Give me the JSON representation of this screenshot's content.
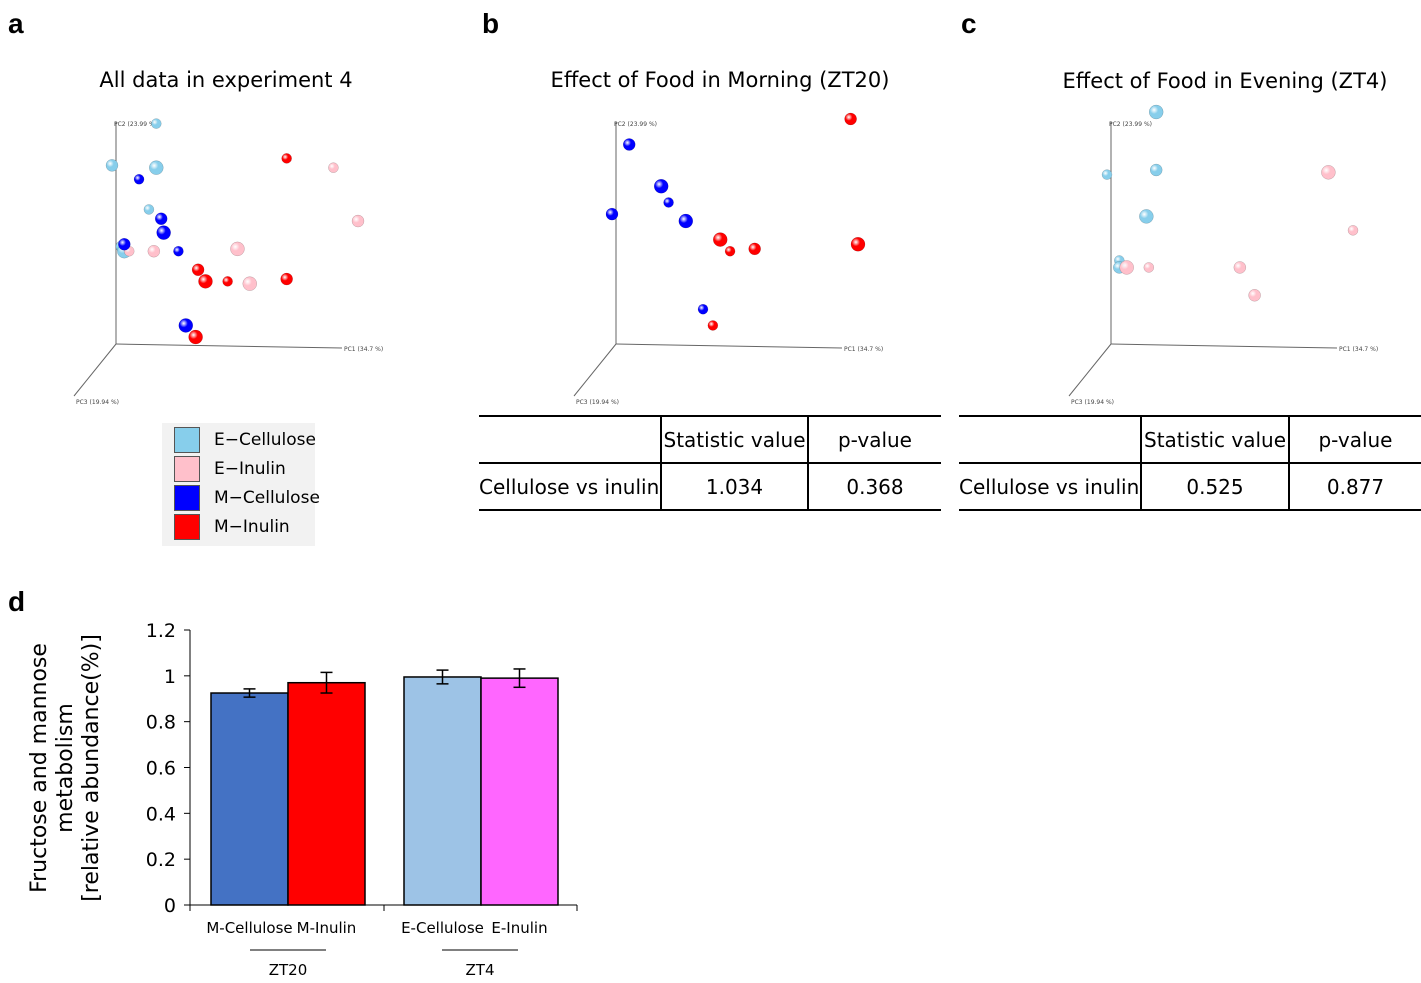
{
  "panels": {
    "a": {
      "letter": "a",
      "title": "All data in experiment 4"
    },
    "b": {
      "letter": "b",
      "title": "Effect of Food in Morning (ZT20)"
    },
    "c": {
      "letter": "c",
      "title": "Effect of Food in Evening (ZT4)"
    },
    "d": {
      "letter": "d"
    }
  },
  "pca_axes": {
    "pc1": "PC1 (34.7 %)",
    "pc2": "PC2 (23.99 %)",
    "pc3": "PC3 (19.94 %)"
  },
  "legend": [
    {
      "label": "E−Cellulose",
      "color": "#87ceeb"
    },
    {
      "label": "E−Inulin",
      "color": "#ffc0cb"
    },
    {
      "label": "M−Cellulose",
      "color": "#0000ff"
    },
    {
      "label": "M−Inulin",
      "color": "#ff0000"
    }
  ],
  "tables": {
    "b": {
      "headers": [
        "",
        "Statistic value",
        "p-value"
      ],
      "row": [
        "Cellulose vs inulin",
        "1.034",
        "0.368"
      ]
    },
    "c": {
      "headers": [
        "",
        "Statistic value",
        "p-value"
      ],
      "row": [
        "Cellulose vs inulin",
        "0.525",
        "0.877"
      ]
    }
  },
  "chart_data": [
    {
      "panel": "a",
      "type": "scatter",
      "title": "All data in experiment 4",
      "projection": "3d-pca",
      "axes": [
        "PC1 (34.7 %)",
        "PC2 (23.99 %)",
        "PC3 (19.94 %)"
      ],
      "series": [
        {
          "name": "E−Cellulose",
          "color": "#87ceeb",
          "points": [
            [
              0.18,
              0.95
            ],
            [
              0.0,
              0.77
            ],
            [
              0.18,
              0.76
            ],
            [
              0.15,
              0.58
            ],
            [
              0.04,
              0.42
            ],
            [
              0.05,
              0.4
            ]
          ]
        },
        {
          "name": "E−Inulin",
          "color": "#ffc0cb",
          "points": [
            [
              0.9,
              0.76
            ],
            [
              1.0,
              0.53
            ],
            [
              0.51,
              0.41
            ],
            [
              0.07,
              0.4
            ],
            [
              0.17,
              0.4
            ],
            [
              0.56,
              0.26
            ]
          ]
        },
        {
          "name": "M−Cellulose",
          "color": "#0000ff",
          "points": [
            [
              0.11,
              0.71
            ],
            [
              0.2,
              0.54
            ],
            [
              0.21,
              0.48
            ],
            [
              0.27,
              0.4
            ],
            [
              0.05,
              0.43
            ],
            [
              0.3,
              0.08
            ]
          ]
        },
        {
          "name": "M−Inulin",
          "color": "#ff0000",
          "points": [
            [
              0.71,
              0.8
            ],
            [
              0.35,
              0.32
            ],
            [
              0.38,
              0.27
            ],
            [
              0.47,
              0.27
            ],
            [
              0.71,
              0.28
            ],
            [
              0.34,
              0.03
            ]
          ]
        }
      ]
    },
    {
      "panel": "b",
      "type": "scatter",
      "title": "Effect of Food in Morning (ZT20)",
      "projection": "3d-pca",
      "axes": [
        "PC1 (34.7 %)",
        "PC2 (23.99 %)",
        "PC3 (19.94 %)"
      ],
      "series": [
        {
          "name": "M−Cellulose",
          "color": "#0000ff",
          "points": [
            [
              0.07,
              0.86
            ],
            [
              0.2,
              0.68
            ],
            [
              0.23,
              0.61
            ],
            [
              0.0,
              0.56
            ],
            [
              0.3,
              0.53
            ],
            [
              0.37,
              0.15
            ]
          ]
        },
        {
          "name": "M−Inulin",
          "color": "#ff0000",
          "points": [
            [
              0.97,
              0.97
            ],
            [
              0.44,
              0.45
            ],
            [
              0.48,
              0.4
            ],
            [
              0.58,
              0.41
            ],
            [
              1.0,
              0.43
            ],
            [
              0.41,
              0.08
            ]
          ]
        }
      ]
    },
    {
      "panel": "c",
      "type": "scatter",
      "title": "Effect of Food in Evening (ZT4)",
      "projection": "3d-pca",
      "axes": [
        "PC1 (34.7 %)",
        "PC2 (23.99 %)",
        "PC3 (19.94 %)"
      ],
      "series": [
        {
          "name": "E−Cellulose",
          "color": "#87ceeb",
          "points": [
            [
              0.2,
              1.0
            ],
            [
              0.0,
              0.73
            ],
            [
              0.2,
              0.75
            ],
            [
              0.16,
              0.55
            ],
            [
              0.05,
              0.36
            ],
            [
              0.05,
              0.33
            ]
          ]
        },
        {
          "name": "E−Inulin",
          "color": "#ffc0cb",
          "points": [
            [
              0.9,
              0.74
            ],
            [
              1.0,
              0.49
            ],
            [
              0.54,
              0.33
            ],
            [
              0.08,
              0.33
            ],
            [
              0.17,
              0.33
            ],
            [
              0.6,
              0.21
            ]
          ]
        }
      ]
    },
    {
      "panel": "d",
      "type": "bar",
      "categories": [
        "M-Cellulose",
        "M-Inulin",
        "E-Cellulose",
        "E-Inulin"
      ],
      "groups": [
        {
          "label": "ZT20",
          "members": [
            "M-Cellulose",
            "M-Inulin"
          ]
        },
        {
          "label": "ZT4",
          "members": [
            "E-Cellulose",
            "E-Inulin"
          ]
        }
      ],
      "values": [
        0.925,
        0.97,
        0.995,
        0.99
      ],
      "errors": [
        0.018,
        0.045,
        0.03,
        0.04
      ],
      "colors": [
        "#4472c4",
        "#ff0000",
        "#9dc3e6",
        "#ff66ff"
      ],
      "ylabel_lines": [
        "Fructose and mannose",
        "metabolism",
        "[relative abundance(%)]"
      ],
      "ylim": [
        0,
        1.2
      ],
      "yticks": [
        "0",
        "0.2",
        "0.4",
        "0.6",
        "0.8",
        "1",
        "1.2"
      ]
    }
  ]
}
